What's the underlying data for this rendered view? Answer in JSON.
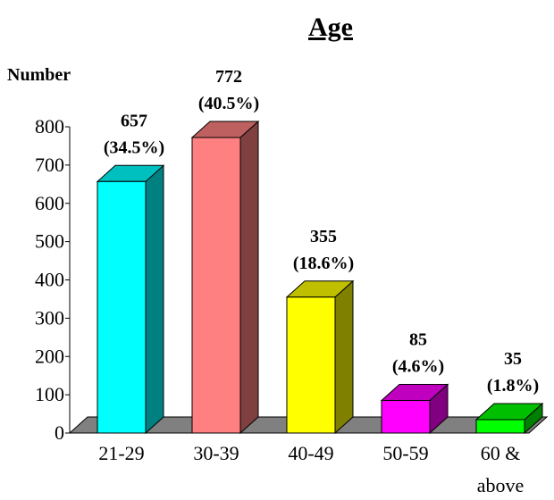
{
  "chart_data": {
    "type": "bar",
    "title": "Age",
    "ylabel": "Number",
    "xlabel": "",
    "ylim": [
      0,
      800
    ],
    "yticks": [
      0,
      100,
      200,
      300,
      400,
      500,
      600,
      700,
      800
    ],
    "grid": false,
    "legend": "none",
    "categories": [
      "21-29",
      "30-39",
      "40-49",
      "50-59",
      "60 & above"
    ],
    "values": [
      657,
      772,
      355,
      85,
      35
    ],
    "percent_labels": [
      "(34.5%)",
      "(40.5%)",
      "(18.6%)",
      "(4.6%)",
      "(1.8%)"
    ],
    "bar_colors": [
      "#00FFFF",
      "#FF8080",
      "#FFFF00",
      "#FF00FF",
      "#00FF00"
    ],
    "floor_color": "#808080"
  }
}
